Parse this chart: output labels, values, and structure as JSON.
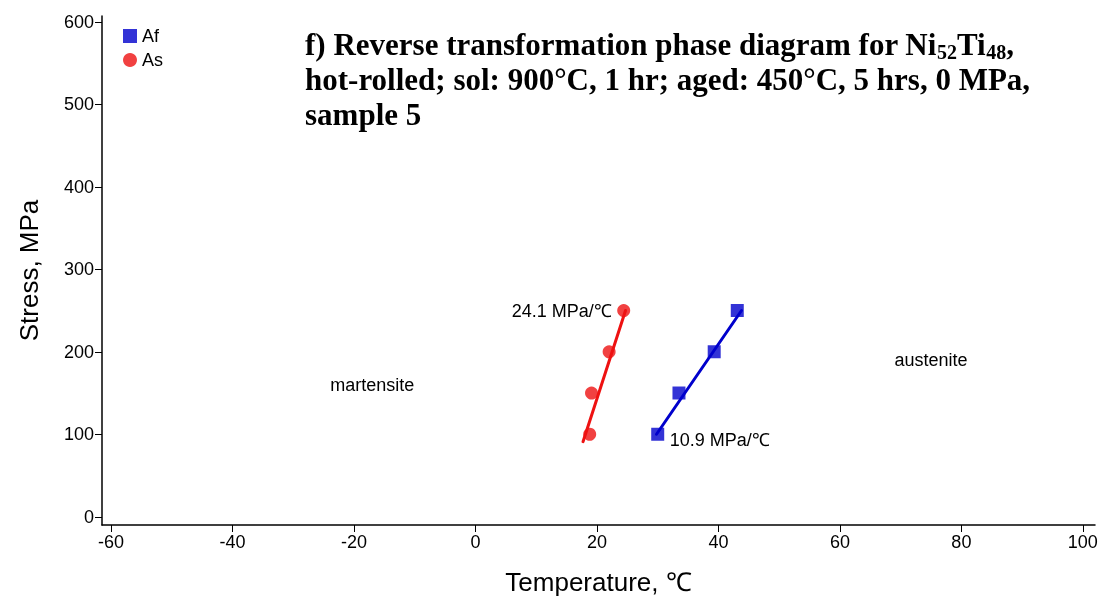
{
  "chart_data": {
    "type": "scatter",
    "title": "f) Reverse transformation phase diagram for Ni$_{52}$Ti$_{48}$, hot-rolled; sol: 900°C, 1 hr; aged: 450°C, 5 hrs, 0 MPa, sample 5",
    "xlabel": "Temperature, ℃",
    "ylabel": "Stress, MPa",
    "series": [
      {
        "name": "Af",
        "color": "#0000cc",
        "marker": "square",
        "x": [
          30,
          33.5,
          39.3,
          43.1
        ],
        "values": [
          100,
          150,
          200,
          250
        ]
      },
      {
        "name": "As",
        "color": "#ee1111",
        "marker": "circle",
        "x": [
          18.8,
          19.1,
          22,
          24.4
        ],
        "values": [
          100,
          150,
          200,
          250
        ]
      },
      {
        "type": "line",
        "color": "#0000cc",
        "marker": "none",
        "x": [
          29.8,
          43.8
        ],
        "values": [
          100,
          250
        ]
      },
      {
        "type": "line",
        "color": "#ee1111",
        "marker": "none",
        "x": [
          17.7,
          24.7
        ],
        "values": [
          91,
          250
        ]
      }
    ],
    "annotations": [
      {
        "text": "24.1 MPa/℃",
        "x": 24.4,
        "y": 250
      },
      {
        "text": "10.9 MPa/℃",
        "x": 30,
        "y": 100
      },
      "martensite",
      "austenite"
    ],
    "xlim": [
      -61.5,
      102
    ],
    "xticks": [
      -60,
      -40,
      -20,
      0,
      20,
      40,
      60,
      80,
      100
    ],
    "ylim": [
      -10,
      607
    ],
    "yticks": [
      0,
      100,
      200,
      300,
      400,
      500,
      600
    ],
    "grid": false,
    "legend": "top left"
  }
}
